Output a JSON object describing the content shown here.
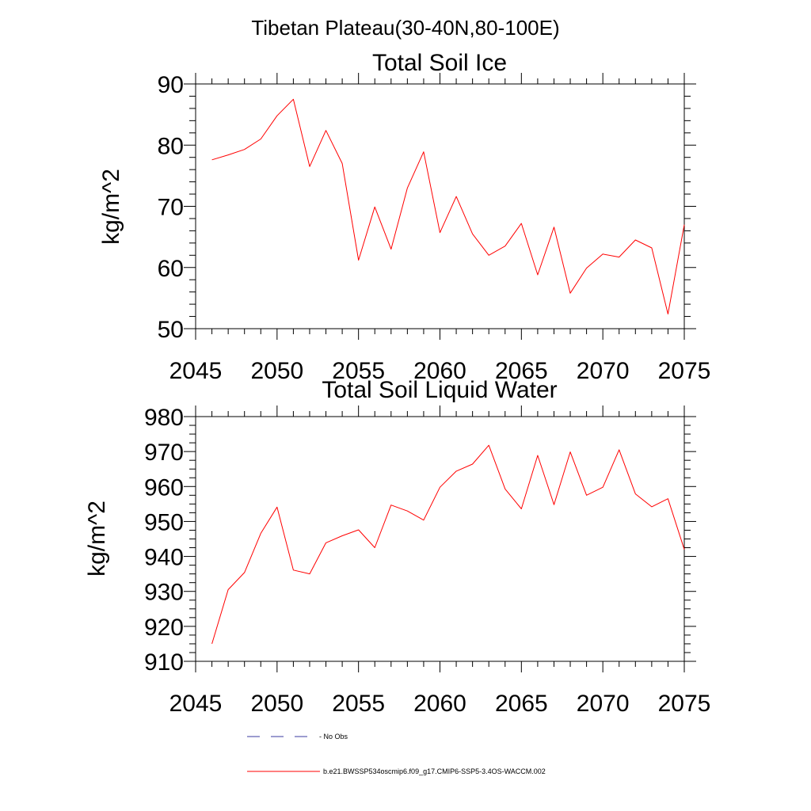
{
  "title": "Tibetan Plateau(30-40N,80-100E)",
  "colors": {
    "series": "#ff0000",
    "obs": "#3a3aa0",
    "axis": "#000000"
  },
  "chart_data": [
    {
      "type": "line",
      "title": "Total Soil Ice",
      "ylabel": "kg/m^2",
      "xlim": [
        2045,
        2075
      ],
      "ylim": [
        50,
        90
      ],
      "xticks": [
        2045,
        2050,
        2055,
        2060,
        2065,
        2070,
        2075
      ],
      "yticks": [
        50,
        60,
        70,
        80,
        90
      ],
      "x": [
        2046,
        2047,
        2048,
        2049,
        2050,
        2051,
        2052,
        2053,
        2054,
        2055,
        2056,
        2057,
        2058,
        2059,
        2060,
        2061,
        2062,
        2063,
        2064,
        2065,
        2066,
        2067,
        2068,
        2069,
        2070,
        2071,
        2072,
        2073,
        2074,
        2075
      ],
      "series": [
        {
          "name": "b.e21.BWSSP534oscmip6.f09_g17.CMIP6-SSP5-3.4OS-WACCM.002",
          "values": [
            77.6,
            78.4,
            79.3,
            81.0,
            84.8,
            87.5,
            76.5,
            82.4,
            77.0,
            61.2,
            69.9,
            63.0,
            73.0,
            78.9,
            65.7,
            71.6,
            65.5,
            62.0,
            63.5,
            67.2,
            58.8,
            66.6,
            55.8,
            59.9,
            62.2,
            61.7,
            64.5,
            63.2,
            52.4,
            67.0
          ]
        }
      ]
    },
    {
      "type": "line",
      "title": "Total Soil Liquid Water",
      "ylabel": "kg/m^2",
      "xlim": [
        2045,
        2075
      ],
      "ylim": [
        910,
        980
      ],
      "xticks": [
        2045,
        2050,
        2055,
        2060,
        2065,
        2070,
        2075
      ],
      "yticks": [
        910,
        920,
        930,
        940,
        950,
        960,
        970,
        980
      ],
      "x": [
        2046,
        2047,
        2048,
        2049,
        2050,
        2051,
        2052,
        2053,
        2054,
        2055,
        2056,
        2057,
        2058,
        2059,
        2060,
        2061,
        2062,
        2063,
        2064,
        2065,
        2066,
        2067,
        2068,
        2069,
        2070,
        2071,
        2072,
        2073,
        2074,
        2075
      ],
      "series": [
        {
          "name": "b.e21.BWSSP534oscmip6.f09_g17.CMIP6-SSP5-3.4OS-WACCM.002",
          "values": [
            915.0,
            930.5,
            935.4,
            946.6,
            954.1,
            936.1,
            935.0,
            943.9,
            945.9,
            947.6,
            942.5,
            954.7,
            953.0,
            950.4,
            959.8,
            964.4,
            966.4,
            971.8,
            959.3,
            953.6,
            968.9,
            954.8,
            969.9,
            957.5,
            959.8,
            970.5,
            957.9,
            954.2,
            956.5,
            942.0
          ]
        }
      ]
    }
  ],
  "legend": {
    "items": [
      {
        "label": "- No Obs",
        "style": "dashed"
      },
      {
        "label": "b.e21.BWSSP534oscmip6.f09_g17.CMIP6-SSP5-3.4OS-WACCM.002",
        "style": "solid"
      }
    ]
  }
}
